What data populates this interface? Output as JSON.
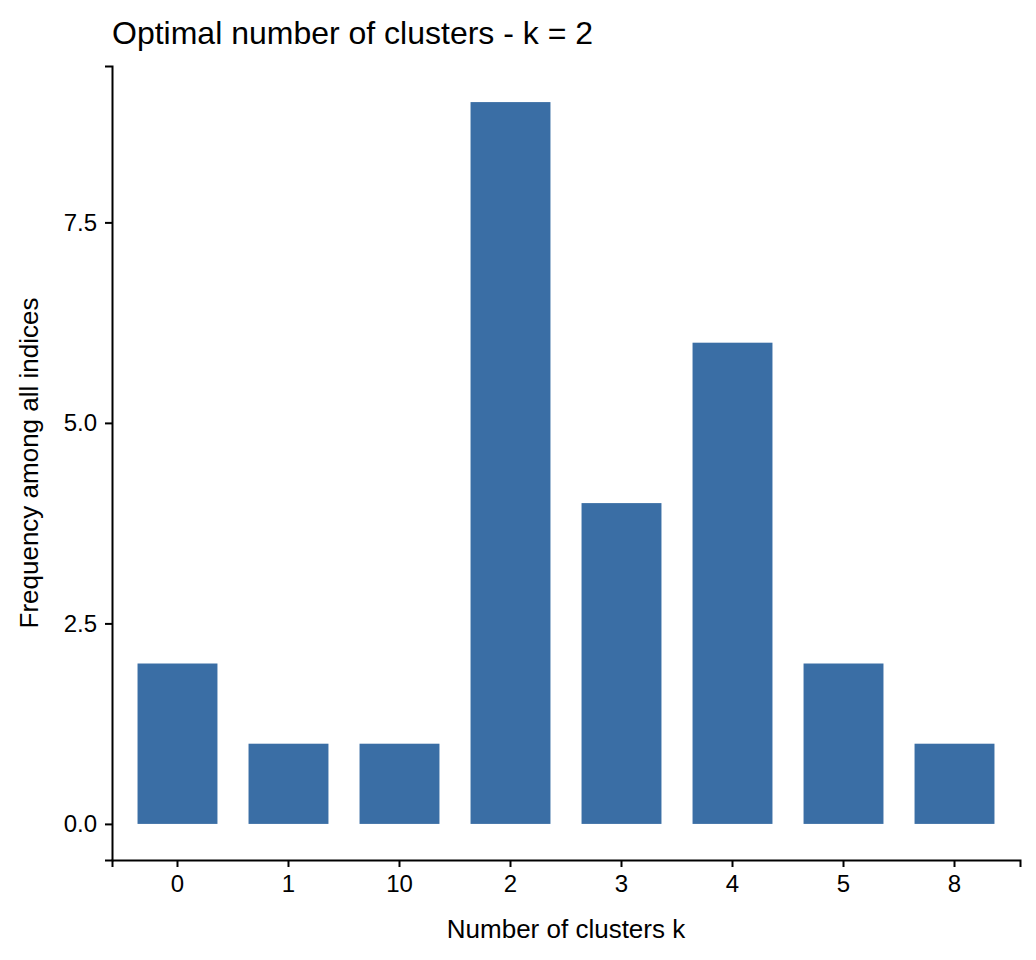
{
  "chart_data": {
    "type": "bar",
    "title": "Optimal number of clusters - k = 2",
    "x_label": "Number of clusters k",
    "y_label": "Frequency among all indices",
    "categories": [
      "0",
      "1",
      "10",
      "2",
      "3",
      "4",
      "5",
      "8"
    ],
    "values": [
      2,
      1,
      1,
      9,
      4,
      6,
      2,
      1
    ],
    "color": "#3a6ea5",
    "ylim": [
      -0.45,
      9.45
    ],
    "yticks": [
      {
        "value": 0,
        "label": "0.0"
      },
      {
        "value": 2.5,
        "label": "2.5"
      },
      {
        "value": 5,
        "label": "5.0"
      },
      {
        "value": 7.5,
        "label": "7.5"
      }
    ],
    "grid": false
  }
}
